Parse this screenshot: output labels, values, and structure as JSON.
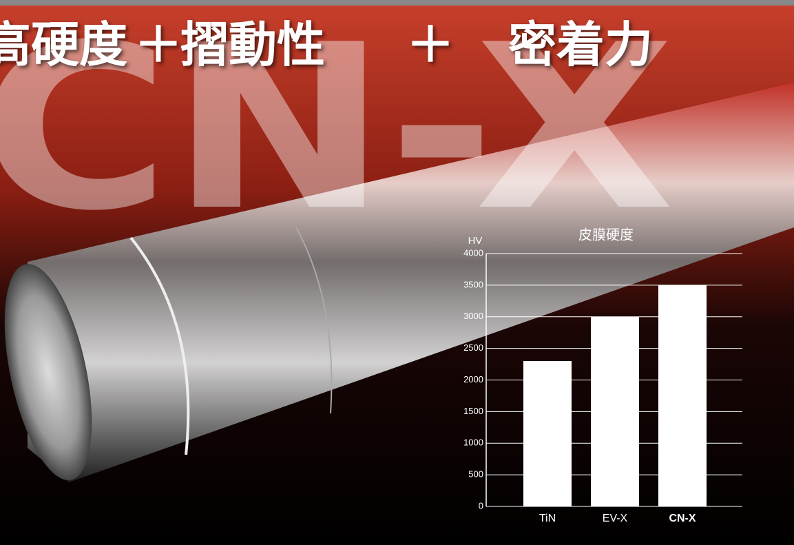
{
  "headline": {
    "words": [
      "高硬度",
      "＋",
      "摺動性",
      "＋",
      "密着力"
    ],
    "watermark": "CN-X"
  },
  "chart_data": {
    "type": "bar",
    "title": "皮膜硬度",
    "y_label": "HV",
    "categories": [
      "TiN",
      "EV-X",
      "CN-X"
    ],
    "values": [
      2300,
      3000,
      3500
    ],
    "color": "#ffffff",
    "highlight_index": 2,
    "ylim": [
      0,
      4000
    ],
    "yticks": [
      0,
      500,
      1000,
      1500,
      2000,
      2500,
      3000,
      3500,
      4000
    ],
    "grid": true
  }
}
